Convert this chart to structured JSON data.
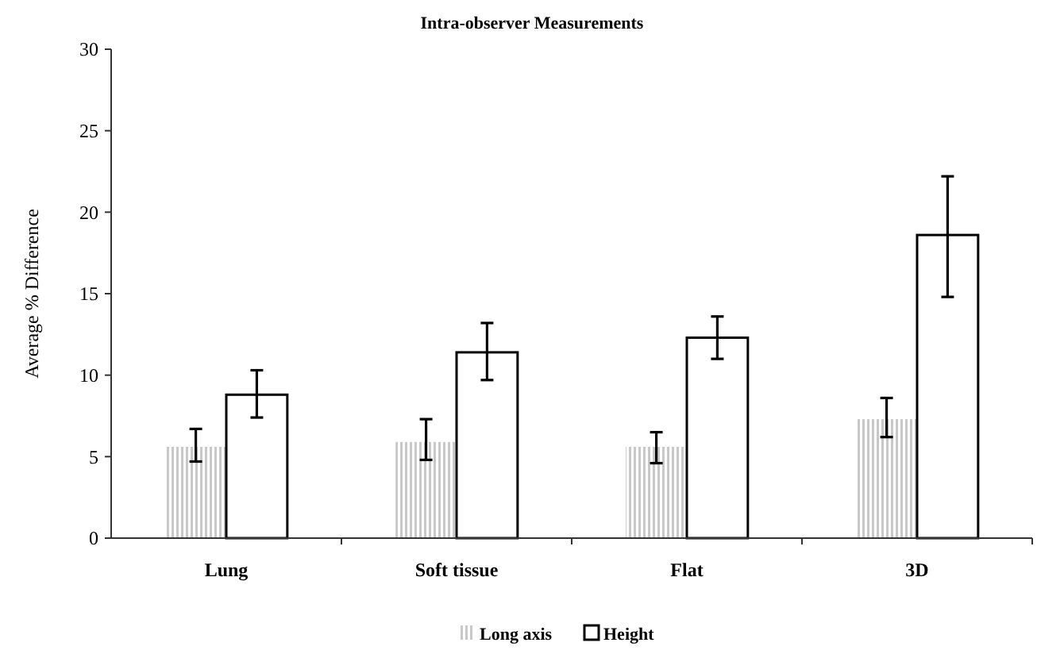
{
  "chart_data": {
    "type": "bar",
    "title": "Intra-observer Measurements",
    "ylabel": "Average % Difference",
    "categories": [
      "Lung",
      "Soft tissue",
      "Flat",
      "3D"
    ],
    "series": [
      {
        "name": "Long axis",
        "color": "#c8c8c8",
        "values": [
          5.6,
          5.9,
          5.6,
          7.3
        ],
        "errors": [
          [
            4.7,
            6.7
          ],
          [
            4.8,
            7.3
          ],
          [
            4.6,
            6.5
          ],
          [
            6.2,
            8.6
          ]
        ]
      },
      {
        "name": "Height",
        "color": "#ffffff",
        "values": [
          8.8,
          11.4,
          12.3,
          18.6
        ],
        "errors": [
          [
            7.4,
            10.3
          ],
          [
            9.7,
            13.2
          ],
          [
            11.0,
            13.6
          ],
          [
            14.8,
            22.2
          ]
        ]
      }
    ],
    "ylim": [
      0,
      30
    ],
    "yticks": [
      0,
      5,
      10,
      15,
      20,
      25,
      30
    ],
    "grid": false,
    "legend": "bottom"
  }
}
